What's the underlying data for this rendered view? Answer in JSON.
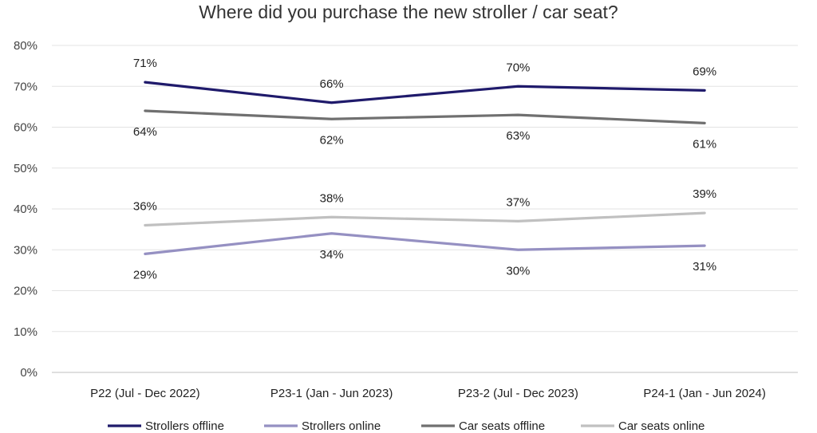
{
  "chart_data": {
    "type": "line",
    "title": "Where did you purchase the new stroller / car seat?",
    "categories": [
      "P22 (Jul - Dec 2022)",
      "P23-1 (Jan - Jun 2023)",
      "P23-2 (Jul - Dec 2023)",
      "P24-1 (Jan - Jun 2024)"
    ],
    "ylim": [
      0,
      80
    ],
    "yticks": [
      0,
      10,
      20,
      30,
      40,
      50,
      60,
      70,
      80
    ],
    "ytick_format": "%",
    "grid": true,
    "legend_position": "bottom",
    "series": [
      {
        "name": "Strollers offline",
        "color": "#1f1a6b",
        "values": [
          71,
          66,
          70,
          69
        ],
        "labels": [
          "71%",
          "66%",
          "70%",
          "69%"
        ],
        "label_side": "above"
      },
      {
        "name": "Strollers online",
        "color": "#9590c2",
        "values": [
          29,
          34,
          30,
          31
        ],
        "labels": [
          "29%",
          "34%",
          "30%",
          "31%"
        ],
        "label_side": "below"
      },
      {
        "name": "Car seats offline",
        "color": "#707070",
        "values": [
          64,
          62,
          63,
          61
        ],
        "labels": [
          "64%",
          "62%",
          "63%",
          "61%"
        ],
        "label_side": "below"
      },
      {
        "name": "Car seats online",
        "color": "#c0c0c0",
        "values": [
          36,
          38,
          37,
          39
        ],
        "labels": [
          "36%",
          "38%",
          "37%",
          "39%"
        ],
        "label_side": "above"
      }
    ]
  }
}
